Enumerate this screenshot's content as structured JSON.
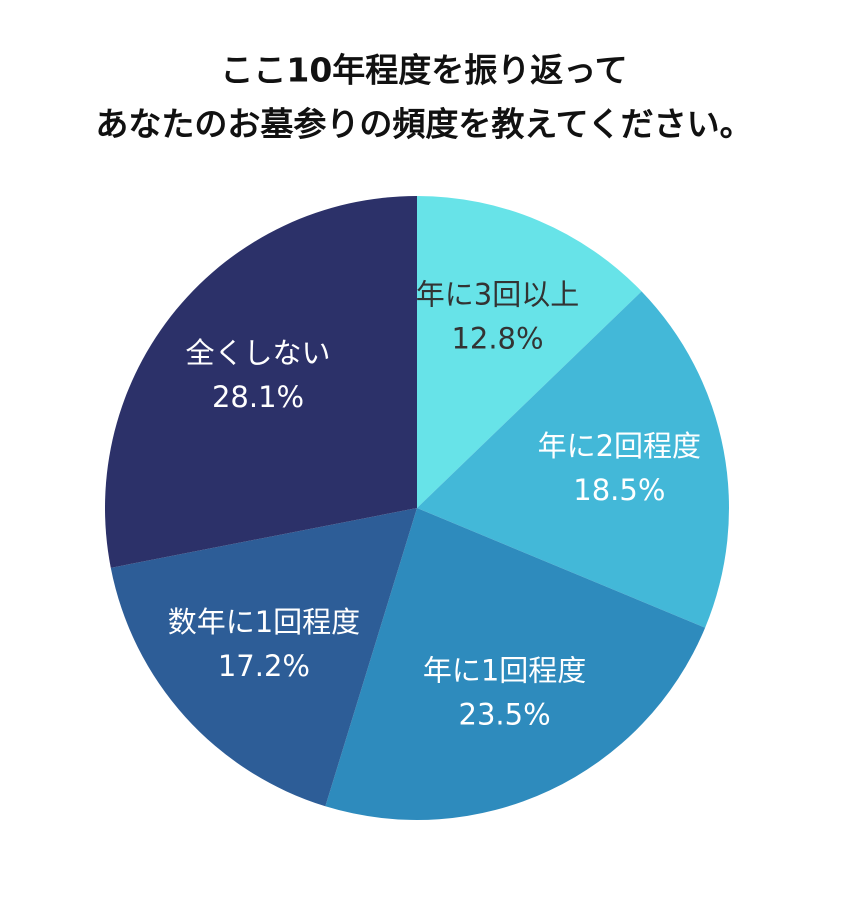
{
  "chart_data": {
    "type": "pie",
    "title": [
      "ここ10年程度を振り返って",
      "あなたのお墓参りの頻度を教えてください。"
    ],
    "categories": [
      "年に3回以上",
      "年に2回程度",
      "年に1回程度",
      "数年に1回程度",
      "全くしない"
    ],
    "values": [
      12.8,
      18.5,
      23.5,
      17.2,
      28.1
    ],
    "value_labels": [
      "12.8%",
      "18.5%",
      "23.5%",
      "17.2%",
      "28.1%"
    ],
    "colors": [
      "#67e3e8",
      "#43b8d8",
      "#2e8bbd",
      "#2d5d97",
      "#2c3169"
    ]
  }
}
